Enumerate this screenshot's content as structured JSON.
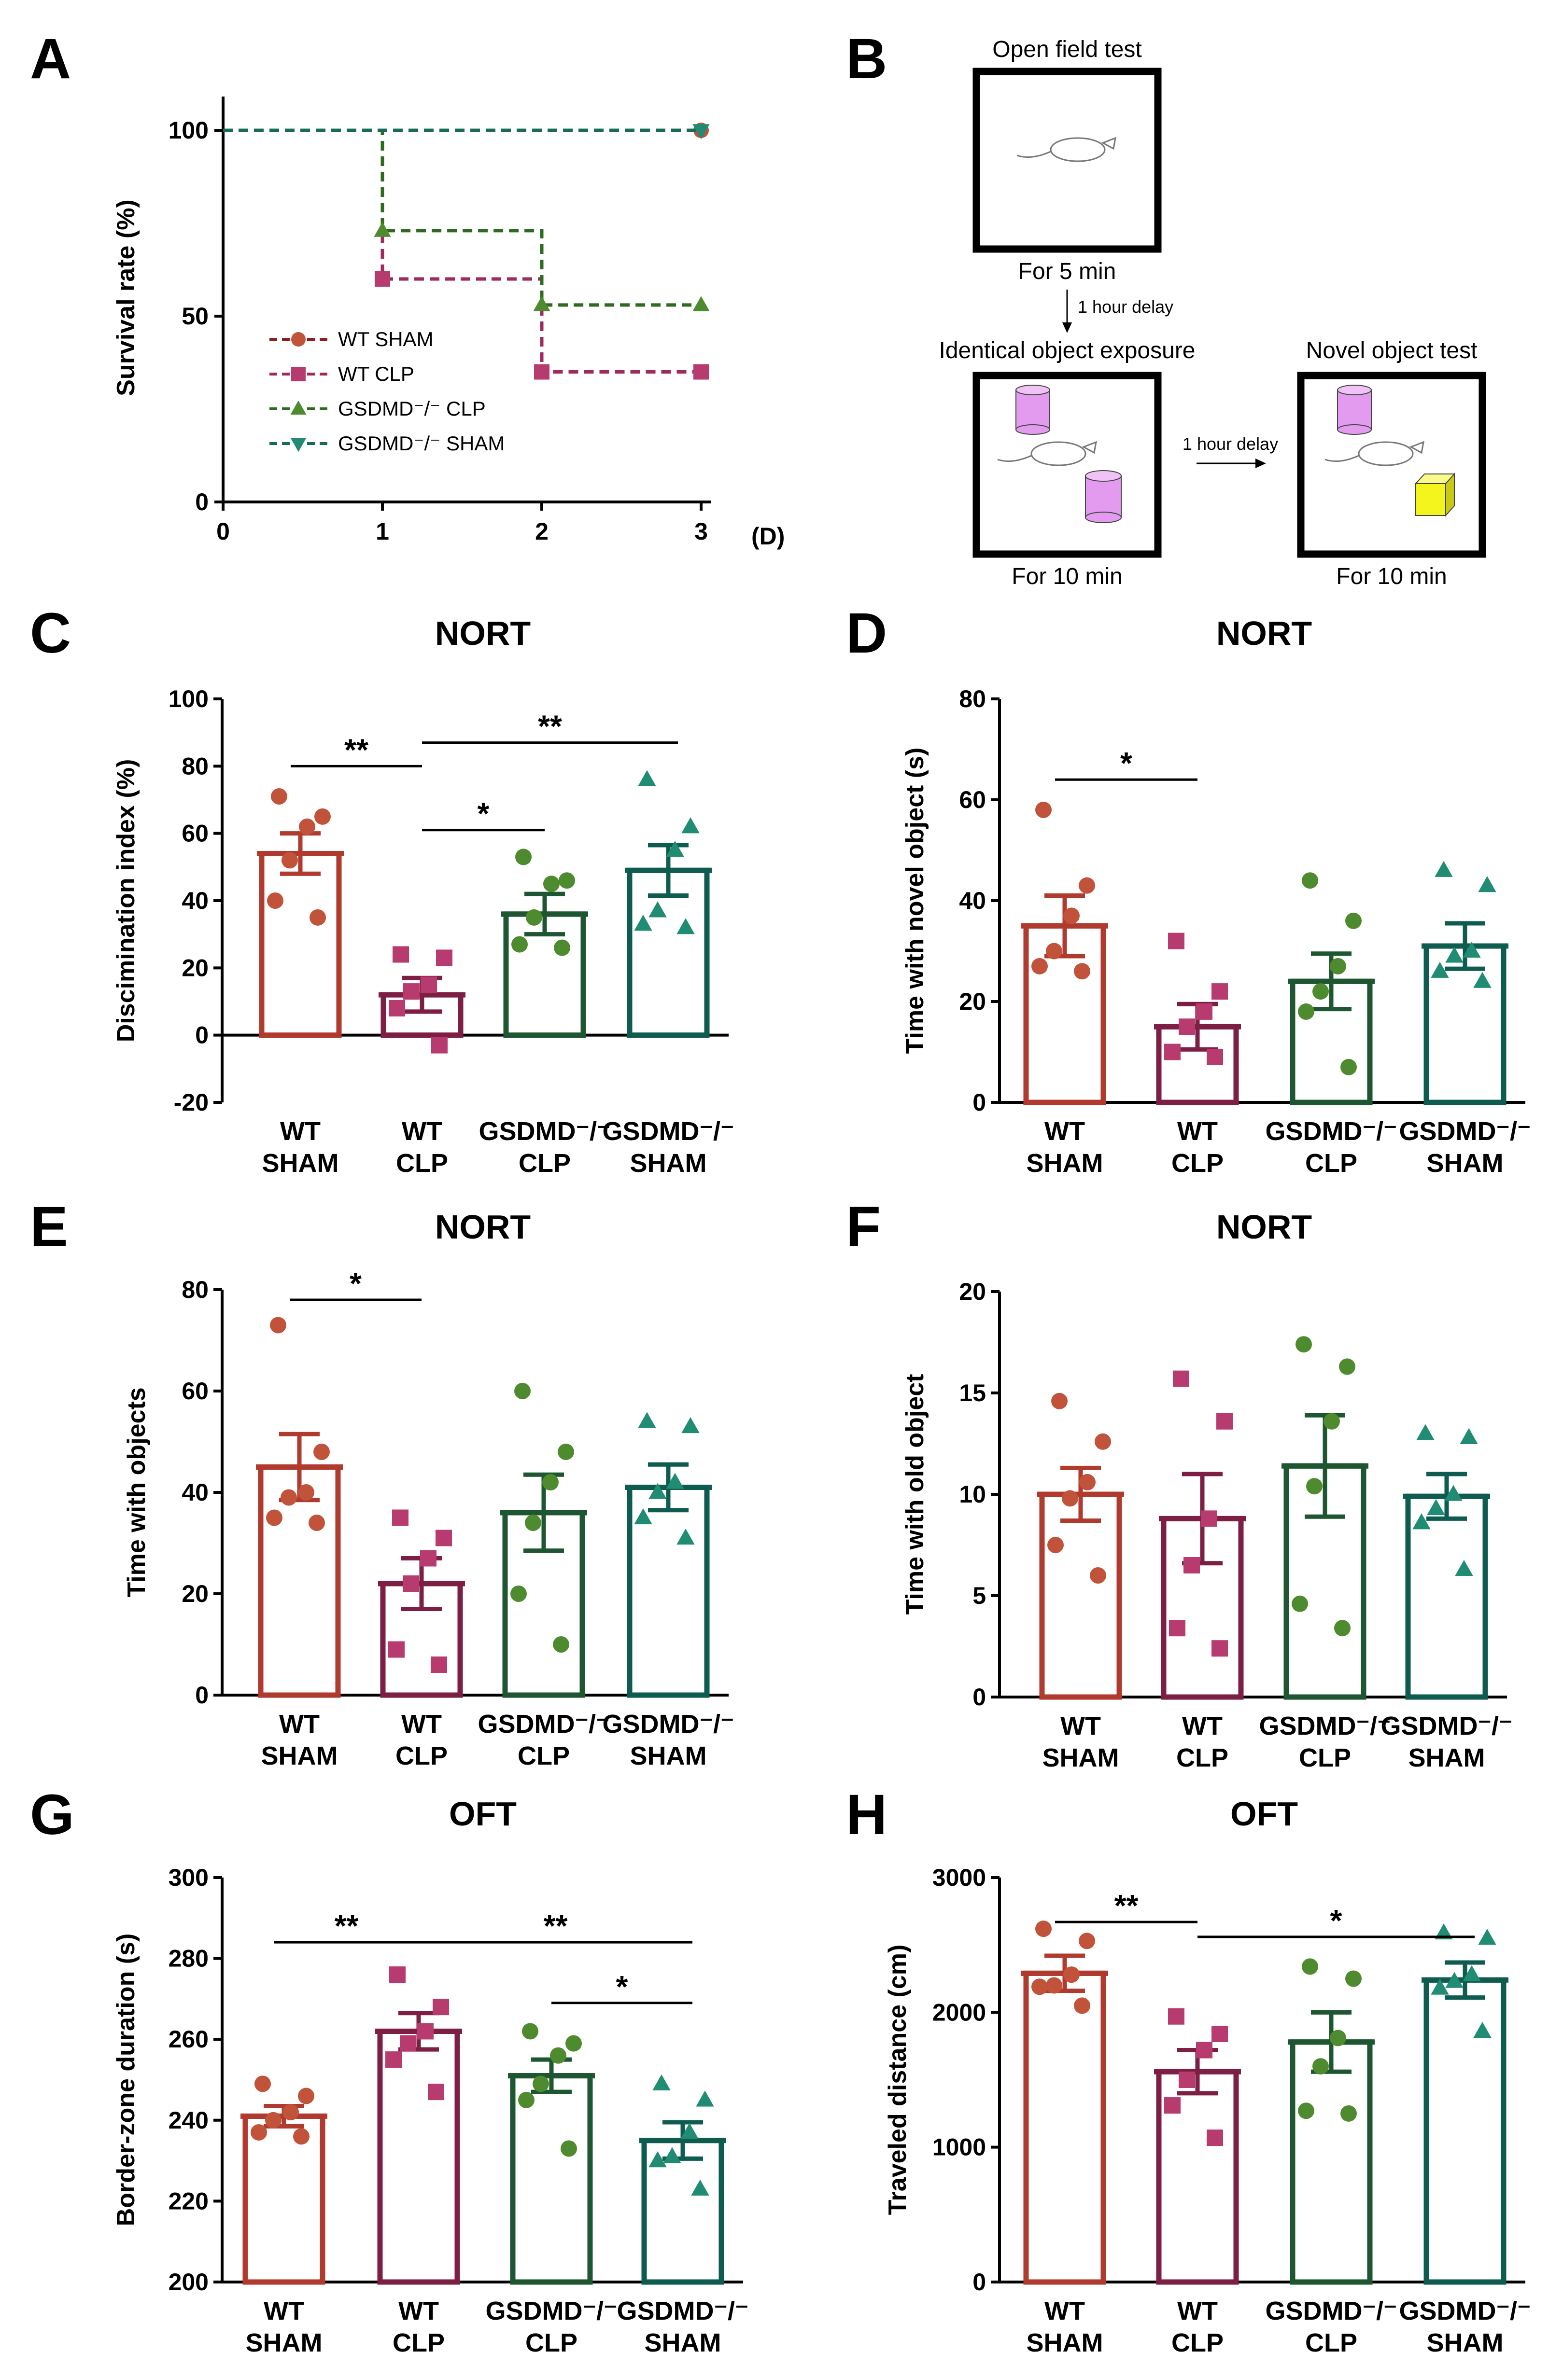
{
  "panel_letters": [
    "A",
    "B",
    "C",
    "D",
    "E",
    "F",
    "G",
    "H"
  ],
  "colors": {
    "wt_sham": "#B03A2E",
    "wt_clp": "#7D1F45",
    "gsdmd_clp": "#1E5631",
    "gsdmd_sham": "#0E5C4F",
    "dot_wt_sham": "#C0533A",
    "dot_wt_clp": "#B73B6E",
    "dot_gsdmd_clp": "#4E8B2E",
    "dot_gsdmd_sham": "#1F8C73",
    "cylinder": "#E39BEF",
    "cube": "#F5F51E"
  },
  "schematic": {
    "open_field_title": "Open field test",
    "open_field_duration": "For 5 min",
    "delay1": "1 hour delay",
    "identical_title": "Identical object exposure",
    "identical_duration": "For 10 min",
    "delay2": "1 hour delay",
    "novel_title": "Novel object test",
    "novel_duration": "For 10 min"
  },
  "chart_data": [
    {
      "panel": "A",
      "type": "line",
      "title": "",
      "xlabel": "",
      "x_unit": "(D)",
      "ylabel": "Survival rate (%)",
      "xlim": [
        0,
        3
      ],
      "ylim": [
        0,
        100
      ],
      "xticks": [
        "0",
        "1",
        "2",
        "3"
      ],
      "yticks": [
        "0",
        "50",
        "100"
      ],
      "legend": [
        "WT SHAM",
        "WT CLP",
        "GSDMD⁻/⁻ CLP",
        "GSDMD⁻/⁻ SHAM"
      ],
      "legend_position": "bottom-left",
      "series": [
        {
          "name": "WT SHAM",
          "x": [
            0,
            3
          ],
          "y": [
            100,
            100
          ],
          "marker": "circle"
        },
        {
          "name": "WT CLP",
          "x": [
            0,
            1,
            2,
            3
          ],
          "y": [
            100,
            60,
            35,
            35
          ],
          "marker": "square"
        },
        {
          "name": "GSDMD⁻/⁻ CLP",
          "x": [
            0,
            1,
            2,
            3
          ],
          "y": [
            100,
            73,
            53,
            53
          ],
          "marker": "triangle-up"
        },
        {
          "name": "GSDMD⁻/⁻ SHAM",
          "x": [
            0,
            3
          ],
          "y": [
            100,
            100
          ],
          "marker": "triangle-down"
        }
      ]
    },
    {
      "panel": "C",
      "type": "bar",
      "title": "NORT",
      "ylabel": "Discimination index (%)",
      "ylim": [
        -20,
        100
      ],
      "yticks": [
        "-20",
        "0",
        "20",
        "40",
        "60",
        "80",
        "100"
      ],
      "categories": [
        "WT\nSHAM",
        "WT\nCLP",
        "GSDMD⁻/⁻\nCLP",
        "GSDMD⁻/⁻\nSHAM"
      ],
      "values": [
        54,
        12,
        36,
        49
      ],
      "errors": [
        6,
        5,
        6,
        7.5
      ],
      "points": [
        [
          71,
          65,
          62,
          52,
          40,
          35
        ],
        [
          24,
          23,
          15,
          13,
          8,
          -3
        ],
        [
          53,
          46,
          45,
          35,
          27,
          26
        ],
        [
          76,
          62,
          55,
          37,
          33,
          32
        ]
      ],
      "significance": [
        {
          "from": 0,
          "to": 1,
          "label": "**",
          "y": 80
        },
        {
          "from": 1,
          "to": 3,
          "label": "**",
          "y": 87
        },
        {
          "from": 1,
          "to": 2,
          "label": "*",
          "y": 61
        }
      ]
    },
    {
      "panel": "D",
      "type": "bar",
      "title": "NORT",
      "ylabel": "Time with novel object (s)",
      "ylim": [
        0,
        80
      ],
      "yticks": [
        "0",
        "20",
        "40",
        "60",
        "80"
      ],
      "categories": [
        "WT\nSHAM",
        "WT\nCLP",
        "GSDMD⁻/⁻\nCLP",
        "GSDMD⁻/⁻\nSHAM"
      ],
      "values": [
        35,
        15,
        24,
        31
      ],
      "errors": [
        6,
        4.5,
        5.5,
        4.5
      ],
      "points": [
        [
          58,
          43,
          37,
          30,
          27,
          26
        ],
        [
          32,
          22,
          18,
          15,
          10,
          9
        ],
        [
          44,
          36,
          27,
          22,
          18,
          7
        ],
        [
          46,
          43,
          30,
          29,
          26,
          24
        ]
      ],
      "significance": [
        {
          "from": 0,
          "to": 1,
          "label": "*",
          "y": 64
        }
      ]
    },
    {
      "panel": "E",
      "type": "bar",
      "title": "NORT",
      "ylabel": "Time with objects",
      "ylim": [
        0,
        80
      ],
      "yticks": [
        "0",
        "20",
        "40",
        "60",
        "80"
      ],
      "categories": [
        "WT\nSHAM",
        "WT\nCLP",
        "GSDMD⁻/⁻\nCLP",
        "GSDMD⁻/⁻\nSHAM"
      ],
      "values": [
        45,
        22,
        36,
        41
      ],
      "errors": [
        6.5,
        5,
        7.5,
        4.5
      ],
      "points": [
        [
          73,
          48,
          40,
          39,
          35,
          34
        ],
        [
          35,
          31,
          27,
          22,
          9,
          6
        ],
        [
          60,
          48,
          42,
          34,
          20,
          10
        ],
        [
          54,
          53,
          42,
          40,
          35,
          31
        ]
      ],
      "significance": [
        {
          "from": 0,
          "to": 1,
          "label": "*",
          "y": 78
        }
      ]
    },
    {
      "panel": "F",
      "type": "bar",
      "title": "NORT",
      "ylabel": "Time with old object",
      "ylim": [
        0,
        20
      ],
      "yticks": [
        "0",
        "5",
        "10",
        "15",
        "20"
      ],
      "categories": [
        "WT\nSHAM",
        "WT\nCLP",
        "GSDMD⁻/⁻\nCLP",
        "GSDMD⁻/⁻\nSHAM"
      ],
      "values": [
        10,
        8.8,
        11.4,
        9.9
      ],
      "errors": [
        1.3,
        2.2,
        2.5,
        1.1
      ],
      "points": [
        [
          14.6,
          12.6,
          10.6,
          9.8,
          7.5,
          6
        ],
        [
          15.7,
          13.6,
          8.8,
          6.5,
          3.4,
          2.4
        ],
        [
          17.4,
          16.3,
          13.6,
          10.4,
          4.6,
          3.4
        ],
        [
          13,
          12.8,
          10,
          9.3,
          8.6,
          6.3
        ]
      ],
      "significance": []
    },
    {
      "panel": "G",
      "type": "bar",
      "title": "OFT",
      "ylabel": "Border-zone duration (s)",
      "ylim": [
        200,
        300
      ],
      "yticks": [
        "200",
        "220",
        "240",
        "260",
        "280",
        "300"
      ],
      "categories": [
        "WT\nSHAM",
        "WT\nCLP",
        "GSDMD⁻/⁻\nCLP",
        "GSDMD⁻/⁻\nSHAM"
      ],
      "values": [
        241,
        262,
        251,
        235
      ],
      "errors": [
        2.5,
        4.5,
        4,
        4.5
      ],
      "points": [
        [
          249,
          246,
          242,
          240,
          237,
          236
        ],
        [
          276,
          268,
          262,
          259,
          255,
          247
        ],
        [
          262,
          259,
          256,
          249,
          245,
          233
        ],
        [
          249,
          245,
          237,
          231,
          230,
          223
        ]
      ],
      "significance": [
        {
          "from": 0,
          "to": 1,
          "label": "**",
          "y": 284
        },
        {
          "from": 1,
          "to": 3,
          "label": "**",
          "y": 284
        },
        {
          "from": 2,
          "to": 3,
          "label": "*",
          "y": 269
        }
      ]
    },
    {
      "panel": "H",
      "type": "bar",
      "title": "OFT",
      "ylabel": "Traveled distance (cm)",
      "ylim": [
        0,
        3000
      ],
      "yticks": [
        "0",
        "1000",
        "2000",
        "3000"
      ],
      "categories": [
        "WT\nSHAM",
        "WT\nCLP",
        "GSDMD⁻/⁻\nCLP",
        "GSDMD⁻/⁻\nSHAM"
      ],
      "values": [
        2290,
        1560,
        1780,
        2240
      ],
      "errors": [
        130,
        160,
        220,
        130
      ],
      "points": [
        [
          2620,
          2530,
          2280,
          2200,
          2190,
          2050
        ],
        [
          1970,
          1840,
          1720,
          1500,
          1310,
          1070
        ],
        [
          2340,
          2250,
          1810,
          1600,
          1270,
          1250
        ],
        [
          2590,
          2550,
          2280,
          2230,
          2180,
          1860
        ]
      ],
      "significance": [
        {
          "from": 0,
          "to": 1,
          "label": "**",
          "y": 2670
        },
        {
          "from": 1,
          "to": 3,
          "label": "*",
          "y": 2560
        }
      ]
    }
  ]
}
